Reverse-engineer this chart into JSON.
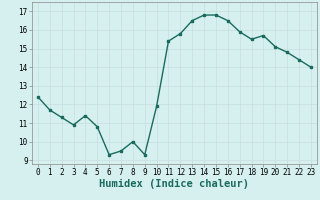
{
  "x": [
    0,
    1,
    2,
    3,
    4,
    5,
    6,
    7,
    8,
    9,
    10,
    11,
    12,
    13,
    14,
    15,
    16,
    17,
    18,
    19,
    20,
    21,
    22,
    23
  ],
  "y": [
    12.4,
    11.7,
    11.3,
    10.9,
    11.4,
    10.8,
    9.3,
    9.5,
    10.0,
    9.3,
    11.9,
    15.4,
    15.8,
    16.5,
    16.8,
    16.8,
    16.5,
    15.9,
    15.5,
    15.7,
    15.1,
    14.8,
    14.4,
    14.0
  ],
  "line_color": "#1a6b5e",
  "marker": "s",
  "marker_size": 1.8,
  "bg_color": "#d6f0f0",
  "grid_color": "#c8dede",
  "grid_color_major": "#c0d0d0",
  "xlabel": "Humidex (Indice chaleur)",
  "xlim": [
    -0.5,
    23.5
  ],
  "ylim": [
    8.8,
    17.5
  ],
  "yticks": [
    9,
    10,
    11,
    12,
    13,
    14,
    15,
    16,
    17
  ],
  "xticks": [
    0,
    1,
    2,
    3,
    4,
    5,
    6,
    7,
    8,
    9,
    10,
    11,
    12,
    13,
    14,
    15,
    16,
    17,
    18,
    19,
    20,
    21,
    22,
    23
  ],
  "tick_label_fontsize": 5.5,
  "xlabel_fontsize": 7.5,
  "line_width": 1.0
}
